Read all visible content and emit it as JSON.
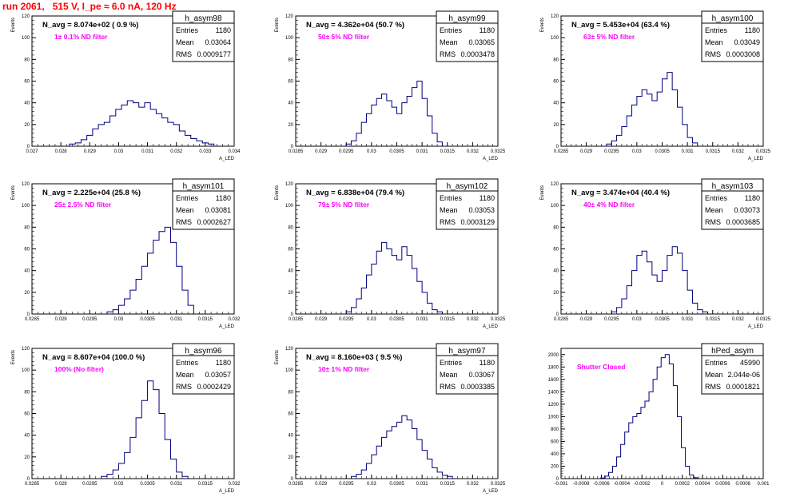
{
  "page": {
    "run_title": "run 2061,   515 V, I_pe ≈ 6.0 nA, 120 Hz"
  },
  "colors": {
    "histogram_line": "#000080",
    "filter_text": "#ff00ff",
    "run_title": "#ff0000",
    "frame": "#000000"
  },
  "stats_labels": {
    "entries": "Entries",
    "mean": "Mean",
    "rms": "RMS"
  },
  "chart_data": [
    {
      "type": "histogram",
      "name": "h_asym98",
      "navg": "N_avg = 8.074e+02 ( 0.9 %)",
      "filter": "1± 0.1% ND filter",
      "entries": "1180",
      "mean": "0.03064",
      "rms": "0.0009177",
      "ylabel": "Events",
      "xlabel": "A_LED",
      "xlim": [
        0.027,
        0.034
      ],
      "ylim": [
        0,
        120
      ],
      "xticks": [
        "0.027",
        "0.028",
        "0.029",
        "0.03",
        "0.031",
        "0.032",
        "0.033",
        "0.034"
      ],
      "yticks": [
        "0",
        "20",
        "40",
        "60",
        "80",
        "100",
        "120"
      ],
      "x": [
        0.0284,
        0.0286,
        0.0288,
        0.029,
        0.0292,
        0.0294,
        0.0296,
        0.0298,
        0.03,
        0.0302,
        0.0304,
        0.0306,
        0.0308,
        0.031,
        0.0312,
        0.0314,
        0.0316,
        0.0318,
        0.032,
        0.0322,
        0.0324,
        0.0326,
        0.0328,
        0.033,
        0.0332
      ],
      "values": [
        2,
        3,
        6,
        10,
        16,
        20,
        22,
        28,
        34,
        38,
        42,
        40,
        36,
        40,
        34,
        30,
        26,
        22,
        20,
        14,
        10,
        7,
        5,
        3,
        2
      ]
    },
    {
      "type": "histogram",
      "name": "h_asym99",
      "navg": "N_avg = 4.362e+04 (50.7 %)",
      "filter": "50± 5% ND filter",
      "entries": "1180",
      "mean": "0.03065",
      "rms": "0.0003478",
      "ylabel": "Events",
      "xlabel": "A_LED",
      "xlim": [
        0.0285,
        0.0325
      ],
      "ylim": [
        0,
        120
      ],
      "xticks": [
        "0.0285",
        "0.029",
        "0.0295",
        "0.03",
        "0.0305",
        "0.031",
        "0.0315",
        "0.032",
        "0.0325"
      ],
      "yticks": [
        "0",
        "20",
        "40",
        "60",
        "80",
        "100",
        "120"
      ],
      "x": [
        0.02955,
        0.02965,
        0.02975,
        0.02985,
        0.02995,
        0.03005,
        0.03015,
        0.03025,
        0.03035,
        0.03045,
        0.03055,
        0.03065,
        0.03075,
        0.03085,
        0.03095,
        0.03105,
        0.03115,
        0.03125,
        0.03135
      ],
      "values": [
        2,
        5,
        12,
        22,
        30,
        38,
        44,
        48,
        42,
        36,
        30,
        40,
        46,
        54,
        60,
        44,
        28,
        12,
        4
      ]
    },
    {
      "type": "histogram",
      "name": "h_asym100",
      "navg": "N_avg = 5.453e+04 (63.4 %)",
      "filter": "63± 5% ND filter",
      "entries": "1180",
      "mean": "0.03049",
      "rms": "0.0003008",
      "ylabel": "Events",
      "xlabel": "A_LED",
      "xlim": [
        0.0285,
        0.0325
      ],
      "ylim": [
        0,
        120
      ],
      "xticks": [
        "0.0285",
        "0.029",
        "0.0295",
        "0.03",
        "0.0305",
        "0.031",
        "0.0315",
        "0.032",
        "0.0325"
      ],
      "yticks": [
        "0",
        "20",
        "40",
        "60",
        "80",
        "100",
        "120"
      ],
      "x": [
        0.02945,
        0.02955,
        0.02965,
        0.02975,
        0.02985,
        0.02995,
        0.03005,
        0.03015,
        0.03025,
        0.03035,
        0.03045,
        0.03055,
        0.03065,
        0.03075,
        0.03085,
        0.03095,
        0.03105,
        0.03115
      ],
      "values": [
        2,
        5,
        10,
        18,
        28,
        38,
        46,
        52,
        48,
        42,
        50,
        62,
        68,
        52,
        36,
        20,
        8,
        3
      ]
    },
    {
      "type": "histogram",
      "name": "h_asym101",
      "navg": "N_avg = 2.225e+04 (25.8 %)",
      "filter": "25± 2.5% ND filter",
      "entries": "1180",
      "mean": "0.03081",
      "rms": "0.0002627",
      "ylabel": "Events",
      "xlabel": "A_LED",
      "xlim": [
        0.0285,
        0.032
      ],
      "ylim": [
        0,
        120
      ],
      "xticks": [
        "0.0285",
        "0.029",
        "0.0295",
        "0.03",
        "0.0305",
        "0.031",
        "0.0315",
        "0.032"
      ],
      "yticks": [
        "0",
        "20",
        "40",
        "60",
        "80",
        "100",
        "120"
      ],
      "x": [
        0.02985,
        0.02995,
        0.03005,
        0.03015,
        0.03025,
        0.03035,
        0.03045,
        0.03055,
        0.03065,
        0.03075,
        0.03085,
        0.03095,
        0.03105,
        0.03115,
        0.03125
      ],
      "values": [
        2,
        4,
        8,
        14,
        22,
        32,
        44,
        56,
        68,
        76,
        80,
        66,
        44,
        22,
        8
      ]
    },
    {
      "type": "histogram",
      "name": "h_asym102",
      "navg": "N_avg = 6.838e+04 (79.4 %)",
      "filter": "79± 5% ND filter",
      "entries": "1180",
      "mean": "0.03053",
      "rms": "0.0003129",
      "ylabel": "Events",
      "xlabel": "A_LED",
      "xlim": [
        0.0285,
        0.0325
      ],
      "ylim": [
        0,
        120
      ],
      "xticks": [
        "0.0285",
        "0.029",
        "0.0295",
        "0.03",
        "0.0305",
        "0.031",
        "0.0315",
        "0.032",
        "0.0325"
      ],
      "yticks": [
        "0",
        "20",
        "40",
        "60",
        "80",
        "100",
        "120"
      ],
      "x": [
        0.02955,
        0.02965,
        0.02975,
        0.02985,
        0.02995,
        0.03005,
        0.03015,
        0.03025,
        0.03035,
        0.03045,
        0.03055,
        0.03065,
        0.03075,
        0.03085,
        0.03095,
        0.03105,
        0.03115,
        0.03125,
        0.03135
      ],
      "values": [
        2,
        6,
        14,
        24,
        36,
        46,
        58,
        66,
        60,
        54,
        50,
        62,
        54,
        42,
        30,
        20,
        10,
        4,
        2
      ]
    },
    {
      "type": "histogram",
      "name": "h_asym103",
      "navg": "N_avg = 3.474e+04 (40.4 %)",
      "filter": "40± 4% ND filter",
      "entries": "1180",
      "mean": "0.03073",
      "rms": "0.0003685",
      "ylabel": "Events",
      "xlabel": "A_LED",
      "xlim": [
        0.0285,
        0.0325
      ],
      "ylim": [
        0,
        120
      ],
      "xticks": [
        "0.0285",
        "0.029",
        "0.0295",
        "0.03",
        "0.0305",
        "0.031",
        "0.0315",
        "0.032",
        "0.0325"
      ],
      "yticks": [
        "0",
        "20",
        "40",
        "60",
        "80",
        "100",
        "120"
      ],
      "x": [
        0.02955,
        0.02965,
        0.02975,
        0.02985,
        0.02995,
        0.03005,
        0.03015,
        0.03025,
        0.03035,
        0.03045,
        0.03055,
        0.03065,
        0.03075,
        0.03085,
        0.03095,
        0.03105,
        0.03115,
        0.03125,
        0.03135
      ],
      "values": [
        2,
        6,
        14,
        26,
        40,
        54,
        58,
        48,
        36,
        30,
        40,
        54,
        62,
        56,
        40,
        22,
        10,
        4,
        2
      ]
    },
    {
      "type": "histogram",
      "name": "h_asym96",
      "navg": "N_avg = 8.607e+04 (100.0 %)",
      "filter": "100% (No filter)",
      "entries": "1180",
      "mean": "0.03057",
      "rms": "0.0002429",
      "ylabel": "Events",
      "xlabel": "A_LED",
      "xlim": [
        0.0285,
        0.032
      ],
      "ylim": [
        0,
        120
      ],
      "xticks": [
        "0.0285",
        "0.029",
        "0.0295",
        "0.03",
        "0.0305",
        "0.031",
        "0.0315",
        "0.032"
      ],
      "yticks": [
        "0",
        "20",
        "40",
        "60",
        "80",
        "100",
        "120"
      ],
      "x": [
        0.02975,
        0.02985,
        0.02995,
        0.03005,
        0.03015,
        0.03025,
        0.03035,
        0.03045,
        0.03055,
        0.03065,
        0.03075,
        0.03085,
        0.03095,
        0.03105,
        0.03115
      ],
      "values": [
        2,
        4,
        8,
        14,
        24,
        38,
        56,
        72,
        90,
        82,
        60,
        36,
        18,
        6,
        2
      ]
    },
    {
      "type": "histogram",
      "name": "h_asym97",
      "navg": "N_avg = 8.160e+03 ( 9.5 %)",
      "filter": "10± 1% ND filter",
      "entries": "1180",
      "mean": "0.03067",
      "rms": "0.0003385",
      "ylabel": "Events",
      "xlabel": "A_LED",
      "xlim": [
        0.0285,
        0.0325
      ],
      "ylim": [
        0,
        120
      ],
      "xticks": [
        "0.0285",
        "0.029",
        "0.0295",
        "0.03",
        "0.0305",
        "0.031",
        "0.0315",
        "0.032",
        "0.0325"
      ],
      "yticks": [
        "0",
        "20",
        "40",
        "60",
        "80",
        "100",
        "120"
      ],
      "x": [
        0.02965,
        0.02975,
        0.02985,
        0.02995,
        0.03005,
        0.03015,
        0.03025,
        0.03035,
        0.03045,
        0.03055,
        0.03065,
        0.03075,
        0.03085,
        0.03095,
        0.03105,
        0.03115,
        0.03125,
        0.03135,
        0.03145,
        0.03155
      ],
      "values": [
        2,
        4,
        8,
        14,
        22,
        30,
        38,
        44,
        48,
        52,
        58,
        54,
        46,
        36,
        26,
        18,
        10,
        6,
        3,
        2
      ]
    },
    {
      "type": "histogram",
      "name": "hPed_asym",
      "navg": "",
      "filter": "Shutter Closed",
      "entries": "45990",
      "mean": "2.044e-06",
      "rms": "0.0001821",
      "ylabel": "",
      "xlabel": "",
      "xlim": [
        -0.001,
        0.001
      ],
      "ylim": [
        0,
        2100
      ],
      "xticks": [
        "-0.001",
        "-0.0008",
        "-0.0006",
        "-0.0004",
        "-0.0002",
        "0",
        "0.0002",
        "0.0004",
        "0.0006",
        "0.0008",
        "0.001"
      ],
      "yticks": [
        "0",
        "200",
        "400",
        "600",
        "800",
        "1000",
        "1200",
        "1400",
        "1600",
        "1800",
        "2000"
      ],
      "x": [
        -0.00059,
        -0.00055,
        -0.00051,
        -0.00047,
        -0.00043,
        -0.00039,
        -0.00035,
        -0.00031,
        -0.00027,
        -0.00023,
        -0.00019,
        -0.00015,
        -0.00011,
        -7e-05,
        -3e-05,
        1e-05,
        5e-05,
        9e-05,
        0.00013,
        0.00017,
        0.00021,
        0.00025,
        0.00029,
        0.00033
      ],
      "values": [
        10,
        40,
        100,
        200,
        350,
        550,
        750,
        900,
        1000,
        1050,
        1150,
        1250,
        1400,
        1600,
        1800,
        1950,
        2000,
        1850,
        1500,
        1000,
        500,
        200,
        60,
        15
      ]
    }
  ]
}
